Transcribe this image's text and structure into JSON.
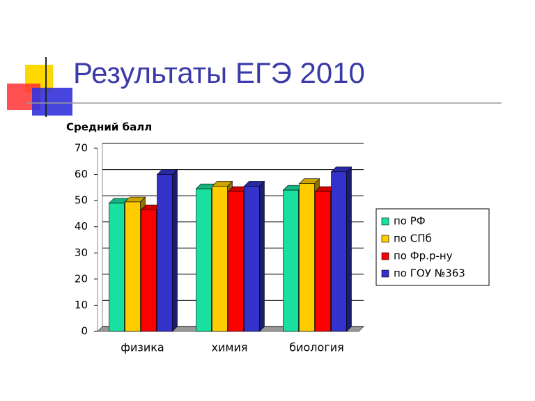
{
  "chart_data": {
    "type": "bar3d",
    "title": "Результаты ЕГЭ 2010",
    "ylabel": "Средний балл",
    "categories": [
      "физика",
      "химия",
      "биология"
    ],
    "series": [
      {
        "name": "по РФ",
        "color": "#19e0a0",
        "values": [
          49,
          54.5,
          54
        ]
      },
      {
        "name": "по СПб",
        "color": "#ffcc00",
        "values": [
          49.5,
          55.5,
          56.5
        ]
      },
      {
        "name": "по Фр.р-ну",
        "color": "#ff0000",
        "values": [
          46.5,
          53.5,
          53.5
        ]
      },
      {
        "name": "по ГОУ №363",
        "color": "#3333cc",
        "values": [
          60,
          55.5,
          61
        ]
      }
    ],
    "ylim": [
      0,
      70
    ],
    "yticks": [
      0,
      10,
      20,
      30,
      40,
      50,
      60,
      70
    ],
    "grid": true,
    "legend": "right"
  }
}
